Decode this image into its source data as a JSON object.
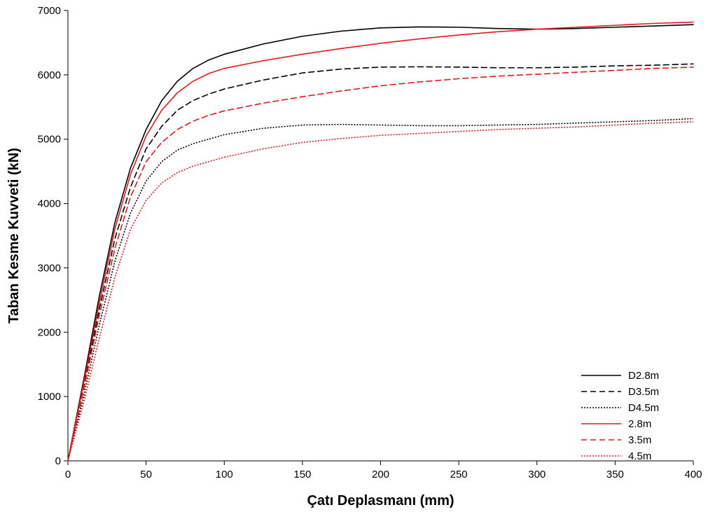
{
  "chart_data": {
    "type": "line",
    "title": "",
    "xlabel": "Çatı Deplasmanı (mm)",
    "ylabel": "Taban Kesme Kuvveti  (kN)",
    "xlim": [
      0,
      400
    ],
    "ylim": [
      0,
      7000
    ],
    "xticks": [
      0,
      50,
      100,
      150,
      200,
      250,
      300,
      350,
      400
    ],
    "yticks": [
      0,
      1000,
      2000,
      3000,
      4000,
      5000,
      6000,
      7000
    ],
    "xtick_labels": [
      "0",
      "50",
      "100",
      "150",
      "200",
      "250",
      "300",
      "350",
      "400"
    ],
    "ytick_labels": [
      "0",
      "1000",
      "2000",
      "3000",
      "4000",
      "5000",
      "6000",
      "7000"
    ],
    "grid": false,
    "legend_position": "bottom-right",
    "series": [
      {
        "name": "D2.8m",
        "color": "#000000",
        "dash": "solid",
        "x": [
          0,
          10,
          20,
          30,
          40,
          50,
          60,
          70,
          80,
          90,
          100,
          125,
          150,
          175,
          200,
          225,
          250,
          275,
          300,
          325,
          350,
          375,
          400
        ],
        "y": [
          0,
          1250,
          2550,
          3700,
          4550,
          5150,
          5600,
          5900,
          6100,
          6230,
          6320,
          6480,
          6600,
          6680,
          6730,
          6745,
          6740,
          6720,
          6710,
          6720,
          6740,
          6760,
          6780
        ]
      },
      {
        "name": "D3.5m",
        "color": "#000000",
        "dash": "dashed",
        "x": [
          0,
          10,
          20,
          30,
          40,
          50,
          60,
          70,
          80,
          90,
          100,
          125,
          150,
          175,
          200,
          225,
          250,
          275,
          300,
          325,
          350,
          375,
          400
        ],
        "y": [
          0,
          1150,
          2350,
          3450,
          4250,
          4850,
          5200,
          5450,
          5600,
          5700,
          5780,
          5920,
          6030,
          6090,
          6120,
          6125,
          6120,
          6110,
          6110,
          6120,
          6140,
          6150,
          6170
        ]
      },
      {
        "name": "D4.5m",
        "color": "#000000",
        "dash": "dotted",
        "x": [
          0,
          10,
          20,
          30,
          40,
          50,
          60,
          70,
          80,
          90,
          100,
          125,
          150,
          175,
          200,
          225,
          250,
          275,
          300,
          325,
          350,
          375,
          400
        ],
        "y": [
          0,
          1000,
          2100,
          3100,
          3850,
          4350,
          4650,
          4830,
          4930,
          5000,
          5070,
          5170,
          5220,
          5230,
          5220,
          5210,
          5210,
          5220,
          5230,
          5250,
          5270,
          5290,
          5320
        ]
      },
      {
        "name": "2.8m",
        "color": "#e8161d",
        "dash": "solid",
        "x": [
          0,
          10,
          20,
          30,
          40,
          50,
          60,
          70,
          80,
          90,
          100,
          125,
          150,
          175,
          200,
          225,
          250,
          275,
          300,
          325,
          350,
          375,
          400
        ],
        "y": [
          0,
          1200,
          2450,
          3600,
          4450,
          5050,
          5450,
          5720,
          5900,
          6020,
          6100,
          6220,
          6320,
          6410,
          6490,
          6560,
          6620,
          6670,
          6710,
          6740,
          6770,
          6800,
          6820
        ]
      },
      {
        "name": "3.5m",
        "color": "#e8161d",
        "dash": "dashed",
        "x": [
          0,
          10,
          20,
          30,
          40,
          50,
          60,
          70,
          80,
          90,
          100,
          125,
          150,
          175,
          200,
          225,
          250,
          275,
          300,
          325,
          350,
          375,
          400
        ],
        "y": [
          0,
          1100,
          2250,
          3300,
          4100,
          4650,
          4950,
          5150,
          5280,
          5370,
          5440,
          5560,
          5660,
          5750,
          5830,
          5890,
          5940,
          5980,
          6010,
          6040,
          6070,
          6100,
          6120
        ]
      },
      {
        "name": "4.5m",
        "color": "#e8161d",
        "dash": "dotted",
        "x": [
          0,
          10,
          20,
          30,
          40,
          50,
          60,
          70,
          80,
          90,
          100,
          125,
          150,
          175,
          200,
          225,
          250,
          275,
          300,
          325,
          350,
          375,
          400
        ],
        "y": [
          0,
          900,
          1900,
          2850,
          3600,
          4050,
          4320,
          4480,
          4580,
          4650,
          4720,
          4850,
          4950,
          5010,
          5060,
          5090,
          5120,
          5150,
          5170,
          5190,
          5220,
          5250,
          5270
        ]
      }
    ]
  }
}
